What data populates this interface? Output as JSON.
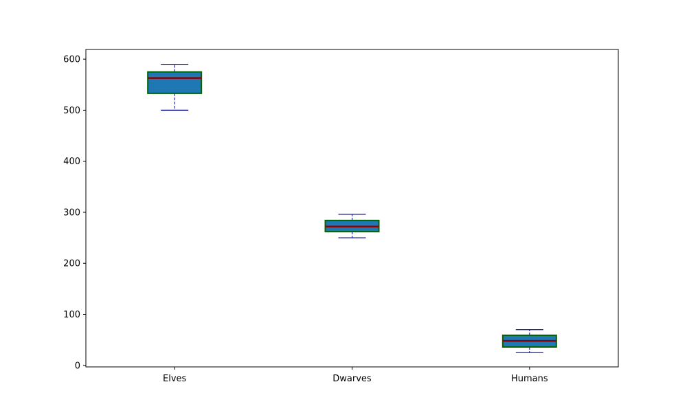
{
  "chart_data": {
    "type": "box",
    "title": "",
    "xlabel": "",
    "ylabel": "",
    "categories": [
      "Elves",
      "Dwarves",
      "Humans"
    ],
    "boxes": [
      {
        "category": "Elves",
        "whisker_low": 500,
        "q1": 533,
        "median": 563,
        "q3": 575,
        "whisker_high": 590
      },
      {
        "category": "Dwarves",
        "whisker_low": 250,
        "q1": 262,
        "median": 272,
        "q3": 284,
        "whisker_high": 296
      },
      {
        "category": "Humans",
        "whisker_low": 25,
        "q1": 36,
        "median": 48,
        "q3": 59,
        "whisker_high": 70
      }
    ],
    "ylim": [
      -3,
      619
    ],
    "yticks": [
      0,
      100,
      200,
      300,
      400,
      500,
      600
    ],
    "grid": false,
    "legend": "none",
    "colors": {
      "box_fill": "#1f77b4",
      "box_edge": "#006400",
      "median": "#8b0000",
      "whisker": "#00008b",
      "axes": "#000000"
    }
  }
}
